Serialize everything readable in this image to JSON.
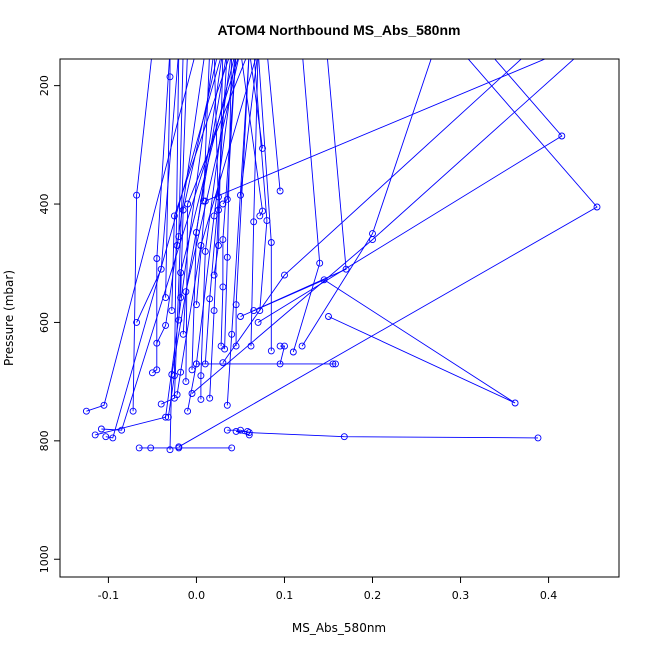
{
  "chart_data": {
    "type": "line",
    "title": "ATOM4 Northbound MS_Abs_580nm",
    "xlabel": "MS_Abs_580nm",
    "ylabel": "Pressure (mbar)",
    "xlim": [
      -0.155,
      0.48
    ],
    "ylim": [
      1030,
      155
    ],
    "y_reversed": true,
    "x_ticks": [
      -0.1,
      0.0,
      0.1,
      0.2,
      0.3,
      0.4
    ],
    "x_tick_labels": [
      "-0.1",
      "0.0",
      "0.1",
      "0.2",
      "0.3",
      "0.4"
    ],
    "y_ticks": [
      200,
      400,
      600,
      800,
      1000
    ],
    "y_tick_labels": [
      "200",
      "400",
      "600",
      "800",
      "1000"
    ],
    "grid": false,
    "legend": "none",
    "color": "#0000ff",
    "series": [
      {
        "points": [
          [
            -0.125,
            750
          ],
          [
            -0.105,
            740
          ],
          [
            0.0,
            140
          ]
        ]
      },
      {
        "points": [
          [
            -0.115,
            790
          ],
          [
            -0.035,
            760
          ],
          [
            0.02,
            140
          ]
        ]
      },
      {
        "points": [
          [
            -0.108,
            780
          ],
          [
            -0.085,
            782
          ],
          [
            0.05,
            140
          ]
        ]
      },
      {
        "points": [
          [
            -0.103,
            793
          ],
          [
            -0.095,
            795
          ],
          [
            0.03,
            140
          ]
        ]
      },
      {
        "points": [
          [
            -0.072,
            750
          ],
          [
            -0.068,
            385
          ],
          [
            -0.05,
            140
          ]
        ]
      },
      {
        "points": [
          [
            -0.068,
            600
          ],
          [
            -0.04,
            510
          ],
          [
            -0.02,
            140
          ]
        ]
      },
      {
        "points": [
          [
            -0.065,
            812
          ],
          [
            -0.052,
            812
          ],
          [
            -0.02,
            812
          ],
          [
            0.04,
            812
          ]
        ]
      },
      {
        "points": [
          [
            -0.05,
            685
          ],
          [
            -0.045,
            680
          ],
          [
            -0.045,
            492
          ],
          [
            -0.03,
            140
          ]
        ]
      },
      {
        "points": [
          [
            -0.045,
            635
          ],
          [
            -0.035,
            605
          ],
          [
            0.01,
            140
          ]
        ]
      },
      {
        "points": [
          [
            -0.04,
            738
          ],
          [
            -0.025,
            728
          ],
          [
            -0.01,
            140
          ]
        ]
      },
      {
        "points": [
          [
            -0.035,
            558
          ],
          [
            -0.03,
            185
          ],
          [
            -0.03,
            140
          ]
        ]
      },
      {
        "points": [
          [
            -0.032,
            760
          ],
          [
            -0.025,
            690
          ],
          [
            -0.02,
            140
          ]
        ]
      },
      {
        "points": [
          [
            -0.03,
            815
          ],
          [
            -0.028,
            688
          ],
          [
            0.035,
            140
          ]
        ]
      },
      {
        "points": [
          [
            -0.028,
            580
          ],
          [
            -0.025,
            420
          ],
          [
            0.04,
            140
          ]
        ]
      },
      {
        "points": [
          [
            -0.022,
            722
          ],
          [
            -0.018,
            684
          ],
          [
            0.005,
            470
          ],
          [
            0.07,
            140
          ]
        ]
      },
      {
        "points": [
          [
            -0.02,
            596
          ],
          [
            -0.018,
            516
          ],
          [
            0.045,
            140
          ]
        ]
      },
      {
        "points": [
          [
            -0.022,
            470
          ],
          [
            -0.02,
            455
          ],
          [
            -0.015,
            140
          ]
        ]
      },
      {
        "points": [
          [
            -0.018,
            558
          ],
          [
            -0.015,
            410
          ],
          [
            0.025,
            140
          ]
        ]
      },
      {
        "points": [
          [
            -0.015,
            620
          ],
          [
            -0.012,
            548
          ],
          [
            0.05,
            140
          ]
        ]
      },
      {
        "points": [
          [
            -0.012,
            700
          ],
          [
            -0.01,
            400
          ],
          [
            0.06,
            140
          ]
        ]
      },
      {
        "points": [
          [
            -0.01,
            750
          ],
          [
            0.0,
            670
          ],
          [
            0.02,
            420
          ],
          [
            0.045,
            140
          ]
        ]
      },
      {
        "points": [
          [
            -0.005,
            680
          ],
          [
            0.0,
            448
          ],
          [
            0.03,
            140
          ]
        ]
      },
      {
        "points": [
          [
            0.005,
            730
          ],
          [
            0.005,
            690
          ],
          [
            0.01,
            480
          ],
          [
            0.04,
            140
          ]
        ]
      },
      {
        "points": [
          [
            0.008,
            395
          ],
          [
            0.015,
            140
          ]
        ]
      },
      {
        "points": [
          [
            0.01,
            670
          ],
          [
            0.015,
            560
          ],
          [
            0.025,
            388
          ],
          [
            0.035,
            140
          ]
        ]
      },
      {
        "points": [
          [
            0.015,
            728
          ],
          [
            0.02,
            580
          ],
          [
            0.025,
            410
          ],
          [
            0.02,
            140
          ]
        ]
      },
      {
        "points": [
          [
            0.02,
            520
          ],
          [
            0.025,
            470
          ],
          [
            0.03,
            140
          ]
        ]
      },
      {
        "points": [
          [
            0.028,
            640
          ],
          [
            0.03,
            540
          ],
          [
            0.03,
            460
          ],
          [
            0.045,
            140
          ]
        ]
      },
      {
        "points": [
          [
            0.03,
            400
          ],
          [
            0.035,
            392
          ],
          [
            0.045,
            140
          ]
        ]
      },
      {
        "points": [
          [
            0.032,
            645
          ],
          [
            0.035,
            490
          ],
          [
            0.04,
            140
          ]
        ]
      },
      {
        "points": [
          [
            0.035,
            740
          ],
          [
            0.04,
            620
          ],
          [
            0.06,
            140
          ]
        ]
      },
      {
        "points": [
          [
            0.045,
            640
          ],
          [
            0.045,
            570
          ],
          [
            0.06,
            140
          ]
        ]
      },
      {
        "points": [
          [
            0.05,
            385
          ],
          [
            0.07,
            140
          ]
        ]
      },
      {
        "points": [
          [
            0.062,
            640
          ],
          [
            0.065,
            430
          ],
          [
            0.07,
            140
          ]
        ]
      },
      {
        "points": [
          [
            0.072,
            420
          ],
          [
            0.075,
            412
          ],
          [
            0.05,
            140
          ]
        ]
      },
      {
        "points": [
          [
            0.075,
            306
          ],
          [
            0.06,
            140
          ]
        ]
      },
      {
        "points": [
          [
            0.072,
            580
          ],
          [
            0.08,
            428
          ],
          [
            0.065,
            140
          ]
        ]
      },
      {
        "points": [
          [
            0.085,
            648
          ],
          [
            0.085,
            465
          ],
          [
            0.07,
            140
          ]
        ]
      },
      {
        "points": [
          [
            0.095,
            378
          ],
          [
            0.08,
            140
          ]
        ]
      },
      {
        "points": [
          [
            0.095,
            640
          ],
          [
            0.1,
            640
          ],
          [
            0.095,
            670
          ]
        ]
      },
      {
        "points": [
          [
            0.0,
            670
          ],
          [
            0.155,
            670
          ],
          [
            0.158,
            670
          ]
        ]
      },
      {
        "points": [
          [
            0.03,
            668
          ],
          [
            0.1,
            520
          ],
          [
            0.38,
            140
          ]
        ]
      },
      {
        "points": [
          [
            0.035,
            782
          ],
          [
            0.05,
            782
          ],
          [
            0.06,
            786
          ],
          [
            0.168,
            793
          ],
          [
            0.388,
            795
          ]
        ]
      },
      {
        "points": [
          [
            0.06,
            790
          ],
          [
            0.045,
            784
          ],
          [
            0.058,
            784
          ]
        ]
      },
      {
        "points": [
          [
            0.11,
            650
          ],
          [
            0.14,
            500
          ],
          [
            0.12,
            140
          ]
        ]
      },
      {
        "points": [
          [
            0.12,
            640
          ],
          [
            0.2,
            450
          ],
          [
            0.27,
            140
          ]
        ]
      },
      {
        "points": [
          [
            0.065,
            580
          ],
          [
            0.17,
            510
          ],
          [
            0.148,
            140
          ]
        ]
      },
      {
        "points": [
          [
            0.05,
            590
          ],
          [
            0.145,
            528
          ],
          [
            0.362,
            736
          ],
          [
            0.15,
            590
          ]
        ]
      },
      {
        "points": [
          [
            -0.02,
            810
          ],
          [
            0.455,
            405
          ],
          [
            0.3,
            140
          ]
        ]
      },
      {
        "points": [
          [
            0.07,
            600
          ],
          [
            0.415,
            285
          ],
          [
            0.33,
            140
          ]
        ]
      },
      {
        "points": [
          [
            0.0,
            570
          ],
          [
            0.01,
            395
          ],
          [
            0.42,
            140
          ]
        ]
      },
      {
        "points": [
          [
            -0.005,
            720
          ],
          [
            0.2,
            460
          ],
          [
            0.44,
            140
          ]
        ]
      }
    ]
  }
}
